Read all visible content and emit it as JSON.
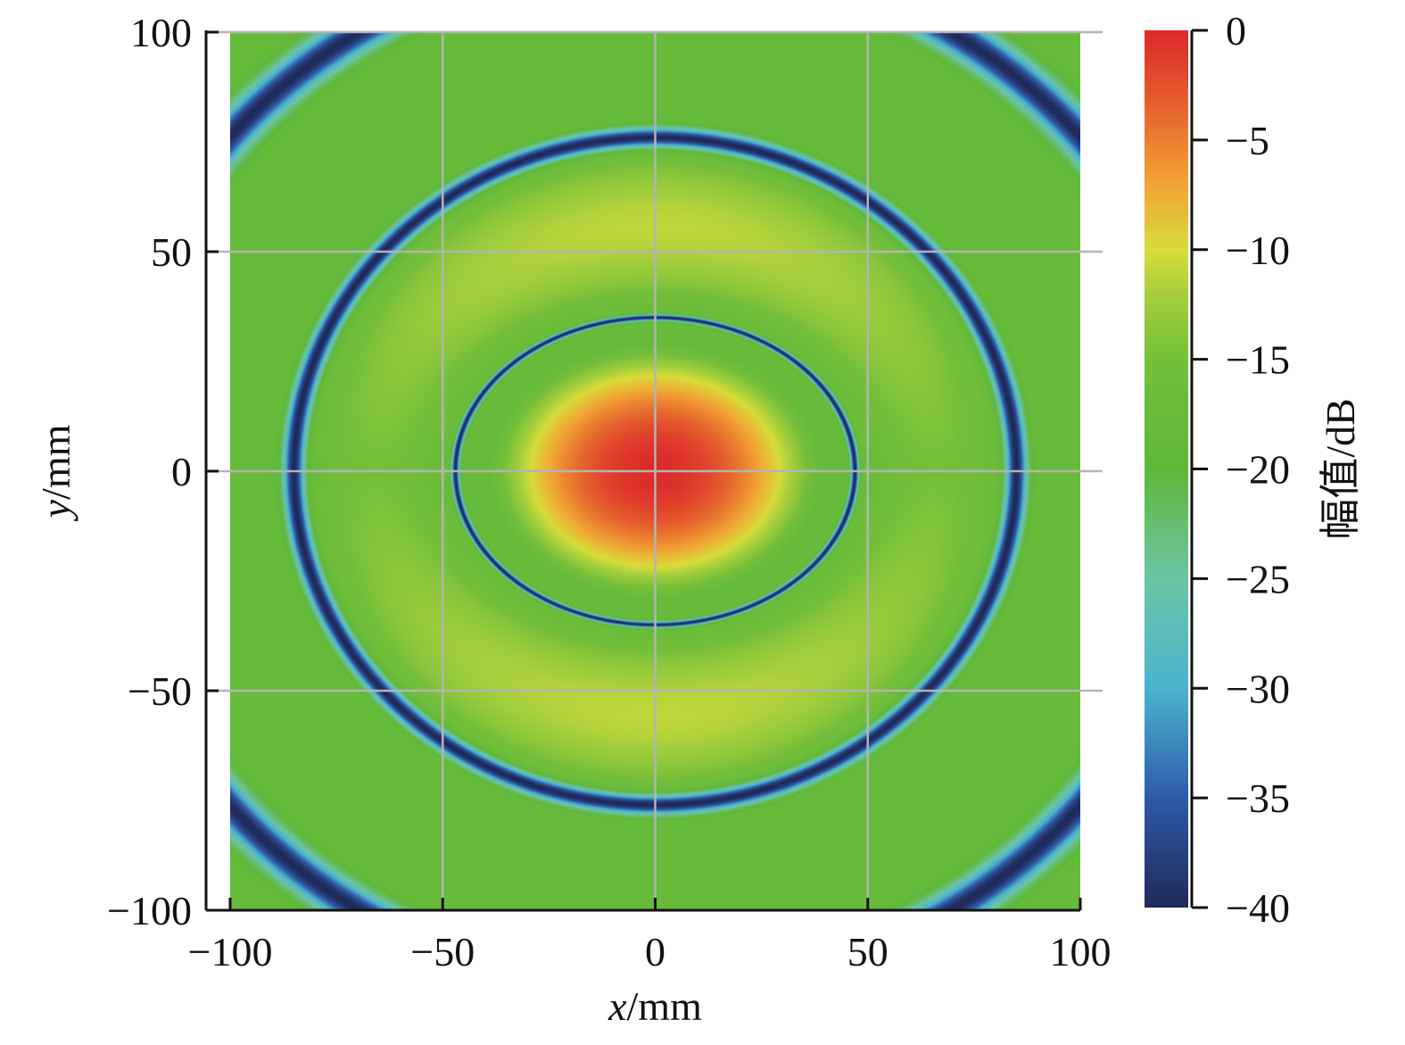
{
  "chart_data": {
    "type": "heatmap",
    "title": "",
    "xlabel": {
      "var": "x",
      "unit": "/mm"
    },
    "ylabel": {
      "var": "y",
      "unit": "/mm"
    },
    "colorbar_label": "幅值/dB",
    "xlim": [
      -100,
      100
    ],
    "ylim": [
      -100,
      100
    ],
    "x_ticks": [
      -100,
      -50,
      0,
      50,
      100
    ],
    "x_tick_labels": [
      "−100",
      "−50",
      "0",
      "50",
      "100"
    ],
    "y_ticks": [
      100,
      50,
      0,
      -50,
      -100
    ],
    "y_tick_labels": [
      "100",
      "50",
      "0",
      "−50",
      "−100"
    ],
    "grid": true,
    "color_range": [
      -40,
      0
    ],
    "colorbar_ticks": [
      0,
      -5,
      -10,
      -15,
      -20,
      -25,
      -30,
      -35,
      -40
    ],
    "colorbar_tick_labels": [
      "0",
      "−5",
      "−10",
      "−15",
      "−20",
      "−25",
      "−30",
      "−35",
      "−40"
    ],
    "colormap": [
      {
        "value": -40,
        "color": "#1f2a5a"
      },
      {
        "value": -35,
        "color": "#2f5aa8"
      },
      {
        "value": -30,
        "color": "#4ab4cf"
      },
      {
        "value": -25,
        "color": "#6cc4a4"
      },
      {
        "value": -20,
        "color": "#5fb83a"
      },
      {
        "value": -15,
        "color": "#74bf3a"
      },
      {
        "value": -12,
        "color": "#a6cf3c"
      },
      {
        "value": -10,
        "color": "#d8dc3a"
      },
      {
        "value": -7,
        "color": "#f1a534"
      },
      {
        "value": -3,
        "color": "#e45a2d"
      },
      {
        "value": 0,
        "color": "#dc2a2a"
      }
    ],
    "pattern": {
      "description_free": true,
      "peak_dB": 0,
      "background_dB": -18,
      "sidelobe_dB": -11,
      "null_rings_mm": [
        {
          "rx": 47,
          "ry": 35,
          "depth_dB": -40
        },
        {
          "rx": 85,
          "ry": 76,
          "depth_dB": -40
        },
        {
          "rx": 131,
          "ry": 118,
          "depth_dB": -40
        }
      ]
    }
  }
}
